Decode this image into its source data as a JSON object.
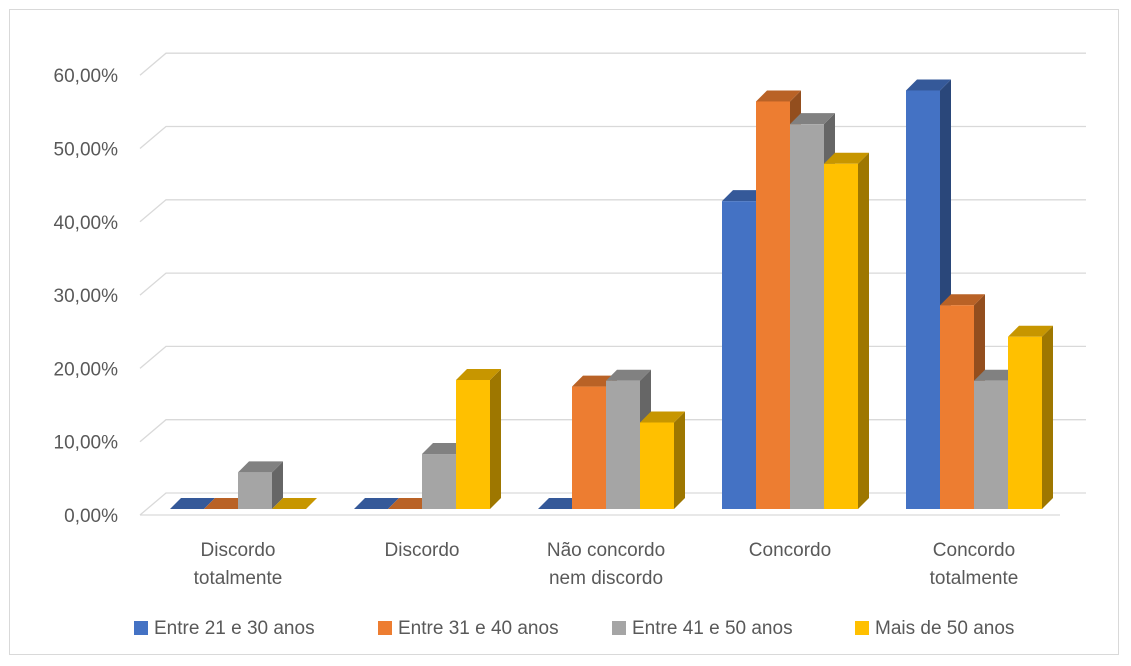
{
  "chart_data": {
    "type": "bar",
    "style": "3d-clustered-column",
    "categories": [
      [
        "Discordo",
        "totalmente"
      ],
      [
        "Discordo"
      ],
      [
        "Não concordo",
        "nem discordo"
      ],
      [
        "Concordo"
      ],
      [
        "Concordo",
        "totalmente"
      ]
    ],
    "series": [
      {
        "name": "Entre 21 e 30 anos",
        "color": "#4472C4",
        "values": [
          0,
          0,
          0,
          42.0,
          57.1
        ]
      },
      {
        "name": "Entre 31 e 40 anos",
        "color": "#ED7D31",
        "values": [
          0,
          0,
          16.7,
          55.6,
          27.8
        ]
      },
      {
        "name": "Entre 41 e 50 anos",
        "color": "#A5A5A5",
        "values": [
          5.0,
          7.5,
          17.5,
          52.5,
          17.5
        ]
      },
      {
        "name": "Mais de 50 anos",
        "color": "#FFC000",
        "values": [
          0,
          17.6,
          11.8,
          47.1,
          23.5
        ]
      }
    ],
    "yticks": [
      "0,00%",
      "10,00%",
      "20,00%",
      "30,00%",
      "40,00%",
      "50,00%",
      "60,00%"
    ],
    "ylim": [
      0,
      60
    ],
    "grid": true,
    "legend_position": "bottom",
    "title": "",
    "xlabel": "",
    "ylabel": ""
  }
}
